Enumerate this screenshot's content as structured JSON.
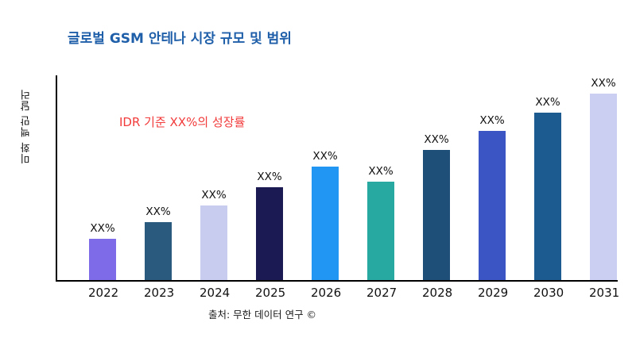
{
  "chart_data": {
    "type": "bar",
    "title": "글로벌 GSM 안테나 시장 규모 및 범위",
    "ylabel": "미화 백만 달러",
    "xlabel": "",
    "annotation": "IDR 기준 XX%의 성장률",
    "annotation_color": "#F23B3B",
    "title_color": "#1F5FA9",
    "source": "출처: 무한 데이터 연구 ©",
    "categories": [
      "2022",
      "2023",
      "2024",
      "2025",
      "2026",
      "2027",
      "2028",
      "2029",
      "2030",
      "2031"
    ],
    "values": [
      22,
      31,
      40,
      50,
      61,
      53,
      70,
      80,
      90,
      100
    ],
    "value_labels": [
      "XX%",
      "XX%",
      "XX%",
      "XX%",
      "XX%",
      "XX%",
      "XX%",
      "XX%",
      "XX%",
      "XX%"
    ],
    "bar_colors": [
      "#7D6BE8",
      "#2A5B7E",
      "#C8CCEE",
      "#1B1A52",
      "#2196F3",
      "#27A8A0",
      "#1E4F78",
      "#3B55C4",
      "#1C5B8F",
      "#CBD0F2"
    ],
    "ylim": [
      0,
      110
    ],
    "grid": false,
    "legend": false
  }
}
